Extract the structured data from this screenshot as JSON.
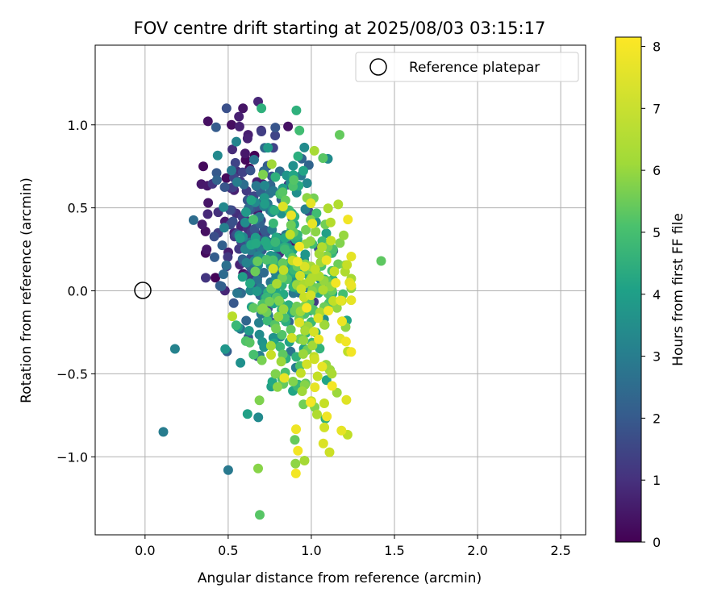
{
  "chart_data": {
    "type": "scatter",
    "title": "FOV centre drift starting at 2025/08/03 03:15:17",
    "xlabel": "Angular distance from reference (arcmin)",
    "ylabel": "Rotation from reference (arcmin)",
    "xlim": [
      -0.3,
      2.65
    ],
    "ylim": [
      -1.47,
      1.48
    ],
    "xticks": [
      0.0,
      0.5,
      1.0,
      1.5,
      2.0,
      2.5
    ],
    "xtick_labels": [
      "0.0",
      "0.5",
      "1.0",
      "1.5",
      "2.0",
      "2.5"
    ],
    "yticks": [
      -1.0,
      -0.5,
      0.0,
      0.5,
      1.0
    ],
    "ytick_labels": [
      "−1.0",
      "−0.5",
      "0.0",
      "0.5",
      "1.0"
    ],
    "grid": true,
    "legend": {
      "placement": "top-right",
      "entries": [
        "Reference platepar"
      ]
    },
    "reference_point": {
      "x": 0.0,
      "y": 0.0,
      "marker": "open-circle"
    },
    "colorbar": {
      "label": "Hours from first FF file",
      "range": [
        0,
        8.15
      ],
      "ticks": [
        0,
        1,
        2,
        3,
        4,
        5,
        6,
        7,
        8
      ],
      "tick_labels": [
        "0",
        "1",
        "2",
        "3",
        "4",
        "5",
        "6",
        "7",
        "8"
      ],
      "colormap": "viridis"
    },
    "point_count": 600,
    "series": [
      {
        "points": [
          {
            "x": 0.68,
            "y": 1.14,
            "hours": 0.9
          },
          {
            "x": 0.52,
            "y": 1.0,
            "hours": 0.3
          },
          {
            "x": 0.86,
            "y": 0.99,
            "hours": 0.4
          },
          {
            "x": 0.7,
            "y": 0.96,
            "hours": 1.5
          },
          {
            "x": 0.62,
            "y": 0.94,
            "hours": 0.7
          },
          {
            "x": 0.35,
            "y": 0.75,
            "hours": 0.2
          },
          {
            "x": 0.43,
            "y": 0.71,
            "hours": 2.3
          },
          {
            "x": 0.11,
            "y": -0.85,
            "hours": 3.4
          },
          {
            "x": 0.18,
            "y": -0.35,
            "hours": 3.6
          },
          {
            "x": 0.5,
            "y": -1.08,
            "hours": 3.3
          },
          {
            "x": 0.69,
            "y": -1.35,
            "hours": 6.0
          },
          {
            "x": 0.68,
            "y": -1.07,
            "hours": 6.7
          },
          {
            "x": 1.42,
            "y": 0.18,
            "hours": 6.1
          },
          {
            "x": 1.17,
            "y": 0.94,
            "hours": 6.2
          },
          {
            "x": 1.22,
            "y": 0.43,
            "hours": 8.0
          },
          {
            "x": 1.23,
            "y": 0.05,
            "hours": 7.8
          }
        ]
      }
    ]
  }
}
